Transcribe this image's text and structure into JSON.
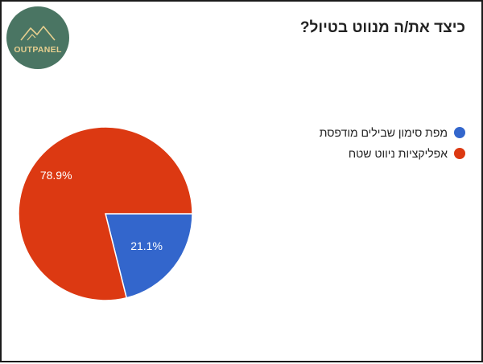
{
  "logo": {
    "text": "OUTPANEL",
    "text_color": "#e7cf8f",
    "bg_color": "#4a7563",
    "icon": "mountain-icon"
  },
  "chart_data": {
    "type": "pie",
    "title": "כיצד את/ה מנווט בטיול?",
    "slices": [
      {
        "label": "מפת סימון שבילים מודפסת",
        "value": 21.1,
        "color": "#3366cc",
        "data_label": "21.1%"
      },
      {
        "label": "אפליקציות ניווט שטח",
        "value": 78.9,
        "color": "#dc3912",
        "data_label": "78.9%"
      }
    ],
    "legend_position": "right"
  }
}
